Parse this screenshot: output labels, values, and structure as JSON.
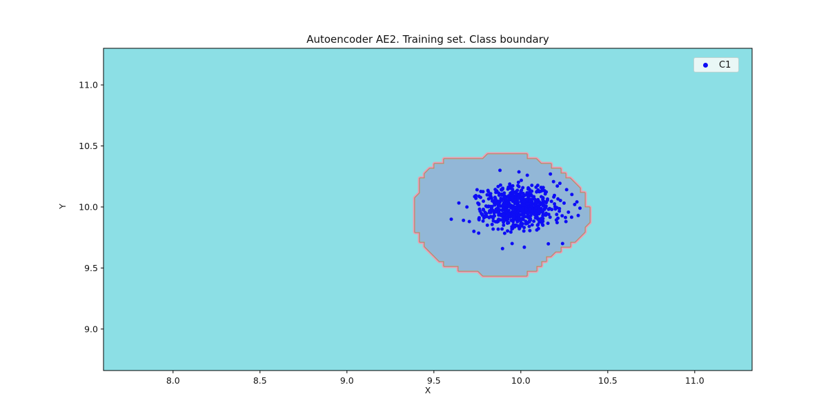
{
  "chart_data": {
    "type": "scatter",
    "title": "Autoencoder AE2. Training set. Class boundary",
    "xlabel": "X",
    "ylabel": "Y",
    "xlim": [
      7.6,
      11.33
    ],
    "ylim": [
      8.66,
      11.3
    ],
    "xticks": [
      8.0,
      8.5,
      9.0,
      9.5,
      10.0,
      10.5,
      11.0
    ],
    "xticklabels": [
      "8.0",
      "8.5",
      "9.0",
      "9.5",
      "10.0",
      "10.5",
      "11.0"
    ],
    "yticks": [
      9.0,
      9.5,
      10.0,
      10.5,
      11.0
    ],
    "yticklabels": [
      "9.0",
      "9.5",
      "10.0",
      "10.5",
      "11.0"
    ],
    "grid": false,
    "legend": [
      {
        "label": "C1",
        "color": "#0d0df5",
        "location": "upper right"
      }
    ],
    "plot_bg_color": "#8cdfe5",
    "series": [
      {
        "name": "C1",
        "color": "#0d0df5",
        "marker": "dot",
        "marker_radius_px": 2.5,
        "cluster": {
          "center": [
            9.99,
            10.0
          ],
          "std": [
            0.11,
            0.09
          ],
          "count": 640,
          "seed": 7
        },
        "outlier_points": [
          [
            9.6,
            9.9
          ],
          [
            9.67,
            9.89
          ],
          [
            9.69,
            10.0
          ],
          [
            9.73,
            9.8
          ],
          [
            10.24,
            9.7
          ],
          [
            10.31,
            10.02
          ],
          [
            10.34,
            9.99
          ],
          [
            10.33,
            9.93
          ],
          [
            10.02,
            9.67
          ],
          [
            9.95,
            9.7
          ],
          [
            10.17,
            10.27
          ],
          [
            9.88,
            10.3
          ]
        ]
      }
    ],
    "decision_region": {
      "class": "C1",
      "center": [
        9.87,
        9.945
      ],
      "rx": 0.5,
      "ry": 0.495,
      "fill_color": "#92b7d7",
      "band_color": "#e8a3b1",
      "inner_line_color": "#bf6a72",
      "edge_line_color": "#9cc79a"
    }
  }
}
